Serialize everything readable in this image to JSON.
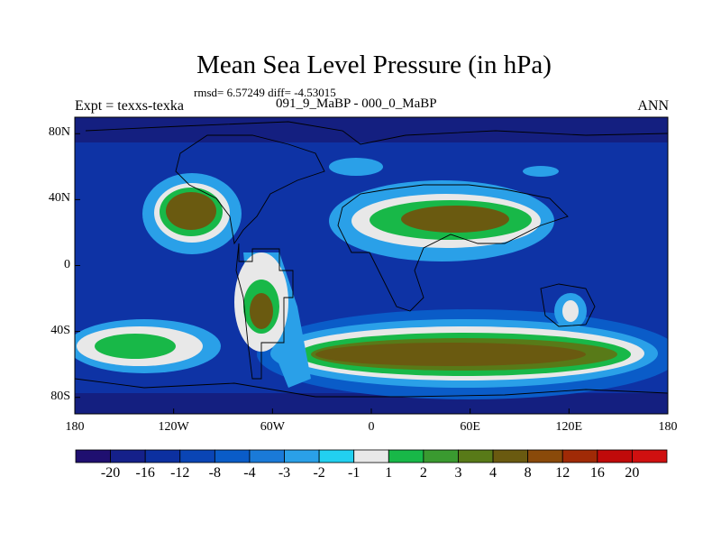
{
  "title": "Mean Sea Level Pressure (in hPa)",
  "stats": "rmsd= 6.57249 diff= -4.53015",
  "left_label": "Expt = texxs-texka",
  "center_label": "091_9_MaBP - 000_0_MaBP",
  "right_label": "ANN",
  "lat_labels": [
    "80N",
    "40N",
    "0",
    "40S",
    "80S"
  ],
  "lat_values": [
    80,
    40,
    0,
    -40,
    -80
  ],
  "lon_labels": [
    "180",
    "120W",
    "60W",
    "0",
    "60E",
    "120E",
    "180"
  ],
  "lon_values": [
    -180,
    -120,
    -60,
    0,
    60,
    120,
    180
  ],
  "colorbar": {
    "labels": [
      "-20",
      "-16",
      "-12",
      "-8",
      "-4",
      "-3",
      "-2",
      "-1",
      "1",
      "2",
      "3",
      "4",
      "8",
      "12",
      "16",
      "20"
    ],
    "colors": [
      "#1f0f70",
      "#15208a",
      "#0c30a0",
      "#0a45b5",
      "#0a5cc8",
      "#1a7ad8",
      "#2aa0e8",
      "#22d0f0",
      "#e8e8e8",
      "#18b848",
      "#3a9a30",
      "#587a18",
      "#6a5a10",
      "#8a4a0a",
      "#a02a06",
      "#c00a0a",
      "#d01010"
    ]
  },
  "map": {
    "lat_range": [
      -90,
      90
    ],
    "lon_range": [
      -180,
      180
    ],
    "background_color": "#0e33a5"
  }
}
